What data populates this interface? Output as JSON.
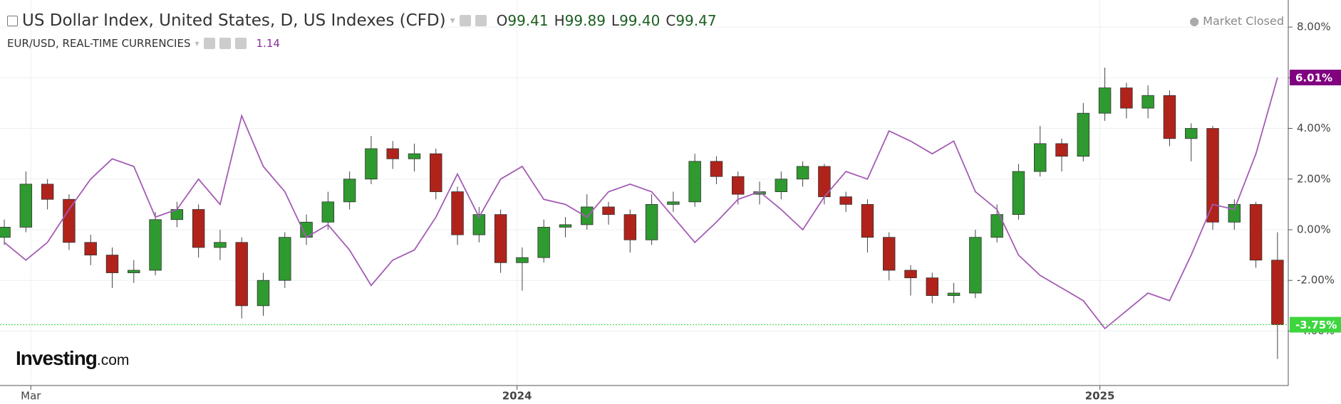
{
  "chart_data": {
    "type": "candlestick",
    "market_status": "Market Closed",
    "logo": {
      "brand": "Investing",
      "suffix": ".com"
    },
    "xlim": [
      -0.2,
      59.5
    ],
    "xticks": [
      {
        "value": 1.23,
        "label": "Mar"
      },
      {
        "value": 23.76,
        "label": "2024"
      },
      {
        "value": 50.77,
        "label": "2025"
      }
    ],
    "ylim": [
      -6.15,
      9.07
    ],
    "yticks": [
      {
        "value": 8,
        "label": "8.00%"
      },
      {
        "value": 6,
        "label": "6.00%"
      },
      {
        "value": 4,
        "label": "4.00%"
      },
      {
        "value": 2,
        "label": "2.00%"
      },
      {
        "value": 0,
        "label": "0.00%"
      },
      {
        "value": -2,
        "label": "-2.00%"
      },
      {
        "value": -4,
        "label": "-4.00%"
      }
    ],
    "grid": true,
    "series": [
      {
        "name": "US Dollar Index, United States, D, US Indexes (CFD)",
        "type": "candlestick",
        "quote_keys": [
          "O",
          "H",
          "L",
          "C"
        ],
        "quote_values": [
          "99.41",
          "99.89",
          "99.40",
          "99.47"
        ],
        "up_color": "#2f9a2f",
        "down_color": "#b0231b",
        "last_color": "#3ed63e",
        "open": [
          -0.3,
          0.1,
          1.8,
          1.2,
          -0.5,
          -1.0,
          -1.7,
          -1.6,
          0.4,
          0.8,
          -0.7,
          -0.5,
          -3.0,
          -2.0,
          -0.3,
          0.3,
          1.1,
          2.0,
          3.2,
          2.8,
          3.0,
          1.5,
          -0.2,
          0.6,
          -1.3,
          -1.1,
          0.1,
          0.2,
          0.9,
          0.6,
          -0.4,
          1.0,
          1.1,
          2.7,
          2.1,
          1.4,
          1.5,
          2.0,
          2.5,
          1.3,
          1.0,
          -0.3,
          -1.6,
          -1.9,
          -2.6,
          -2.5,
          -0.3,
          0.6,
          2.3,
          3.4,
          2.9,
          4.6,
          5.6,
          4.8,
          5.3,
          3.6,
          4.0,
          0.3,
          1.0,
          -1.2
        ],
        "high": [
          0.4,
          2.3,
          2.0,
          1.4,
          -0.2,
          -0.7,
          -1.2,
          0.7,
          1.1,
          1.0,
          0.0,
          -0.3,
          -1.7,
          -0.1,
          0.6,
          1.5,
          2.3,
          3.7,
          3.5,
          3.4,
          3.2,
          1.7,
          0.9,
          0.8,
          -0.7,
          0.4,
          0.5,
          1.4,
          1.1,
          0.8,
          1.4,
          1.5,
          3.0,
          2.9,
          2.3,
          1.9,
          2.3,
          2.7,
          2.6,
          1.5,
          1.2,
          -0.1,
          -1.4,
          -1.7,
          -2.1,
          0.0,
          1.0,
          2.6,
          4.1,
          3.6,
          5.0,
          6.4,
          5.8,
          5.7,
          5.5,
          4.2,
          4.1,
          1.2,
          1.1,
          -0.1
        ],
        "low": [
          -0.6,
          -0.1,
          0.8,
          -0.8,
          -1.4,
          -2.3,
          -2.1,
          -1.8,
          0.1,
          -1.1,
          -1.2,
          -3.5,
          -3.4,
          -2.3,
          -0.6,
          0.0,
          0.8,
          1.8,
          2.4,
          2.3,
          1.2,
          -0.6,
          -0.5,
          -1.7,
          -2.4,
          -1.3,
          -0.3,
          0.0,
          0.2,
          -0.9,
          -0.6,
          0.7,
          0.9,
          1.8,
          1.0,
          1.0,
          1.2,
          1.7,
          1.0,
          0.7,
          -0.9,
          -2.0,
          -2.6,
          -2.9,
          -2.9,
          -2.7,
          -0.5,
          0.4,
          2.1,
          2.3,
          2.7,
          4.3,
          4.4,
          4.4,
          3.3,
          2.7,
          0.0,
          0.0,
          -1.5,
          -5.1
        ],
        "close": [
          0.1,
          1.8,
          1.2,
          -0.5,
          -1.0,
          -1.7,
          -1.6,
          0.4,
          0.8,
          -0.7,
          -0.5,
          -3.0,
          -2.0,
          -0.3,
          0.3,
          1.1,
          2.0,
          3.2,
          2.8,
          3.0,
          1.5,
          -0.2,
          0.6,
          -1.3,
          -1.1,
          0.1,
          0.2,
          0.9,
          0.6,
          -0.4,
          1.0,
          1.1,
          2.7,
          2.1,
          1.4,
          1.5,
          2.0,
          2.5,
          1.3,
          1.0,
          -0.3,
          -1.6,
          -1.9,
          -2.6,
          -2.5,
          -0.3,
          0.6,
          2.3,
          3.4,
          2.9,
          4.6,
          5.6,
          4.8,
          5.3,
          3.6,
          4.0,
          0.3,
          1.0,
          -1.2,
          -3.75
        ],
        "value_labels": [
          null,
          null,
          null,
          null,
          null,
          null,
          null,
          null,
          null,
          null,
          null,
          null,
          null,
          null,
          null,
          null,
          null,
          null,
          null,
          null,
          null,
          null,
          null,
          null,
          null,
          null,
          null,
          null,
          null,
          null,
          null,
          null,
          null,
          null,
          null,
          null,
          null,
          null,
          null,
          null,
          null,
          null,
          null,
          null,
          null,
          null,
          null,
          null,
          null,
          null,
          null,
          null,
          null,
          null,
          null,
          null,
          null,
          null,
          null,
          "-3.75%"
        ]
      },
      {
        "name": "EUR/USD, REAL-TIME CURRENCIES",
        "type": "line",
        "color": "#a45cb4",
        "last_color": "#800080",
        "quote_values": [
          "1.14"
        ],
        "values": [
          -0.5,
          -1.2,
          -0.5,
          0.8,
          2.0,
          2.8,
          2.5,
          0.5,
          0.8,
          2.0,
          1.0,
          4.5,
          2.5,
          1.5,
          -0.3,
          0.2,
          -0.8,
          -2.2,
          -1.2,
          -0.8,
          0.5,
          2.2,
          0.5,
          2.0,
          2.5,
          1.2,
          1.0,
          0.5,
          1.5,
          1.8,
          1.5,
          0.5,
          -0.5,
          0.3,
          1.2,
          1.5,
          0.8,
          0.0,
          1.3,
          2.3,
          2.0,
          3.9,
          3.5,
          3.0,
          3.5,
          1.5,
          0.8,
          -1.0,
          -1.8,
          -2.3,
          -2.8,
          -3.9,
          -3.2,
          -2.5,
          -2.8,
          -1.0,
          1.0,
          0.8,
          3.0,
          6.01
        ],
        "value_labels": [
          null,
          null,
          null,
          null,
          null,
          null,
          null,
          null,
          null,
          null,
          null,
          null,
          null,
          null,
          null,
          null,
          null,
          null,
          null,
          null,
          null,
          null,
          null,
          null,
          null,
          null,
          null,
          null,
          null,
          null,
          null,
          null,
          null,
          null,
          null,
          null,
          null,
          null,
          null,
          null,
          null,
          null,
          null,
          null,
          null,
          null,
          null,
          null,
          null,
          null,
          null,
          null,
          null,
          null,
          null,
          null,
          null,
          null,
          null,
          "6.01%"
        ]
      }
    ]
  }
}
